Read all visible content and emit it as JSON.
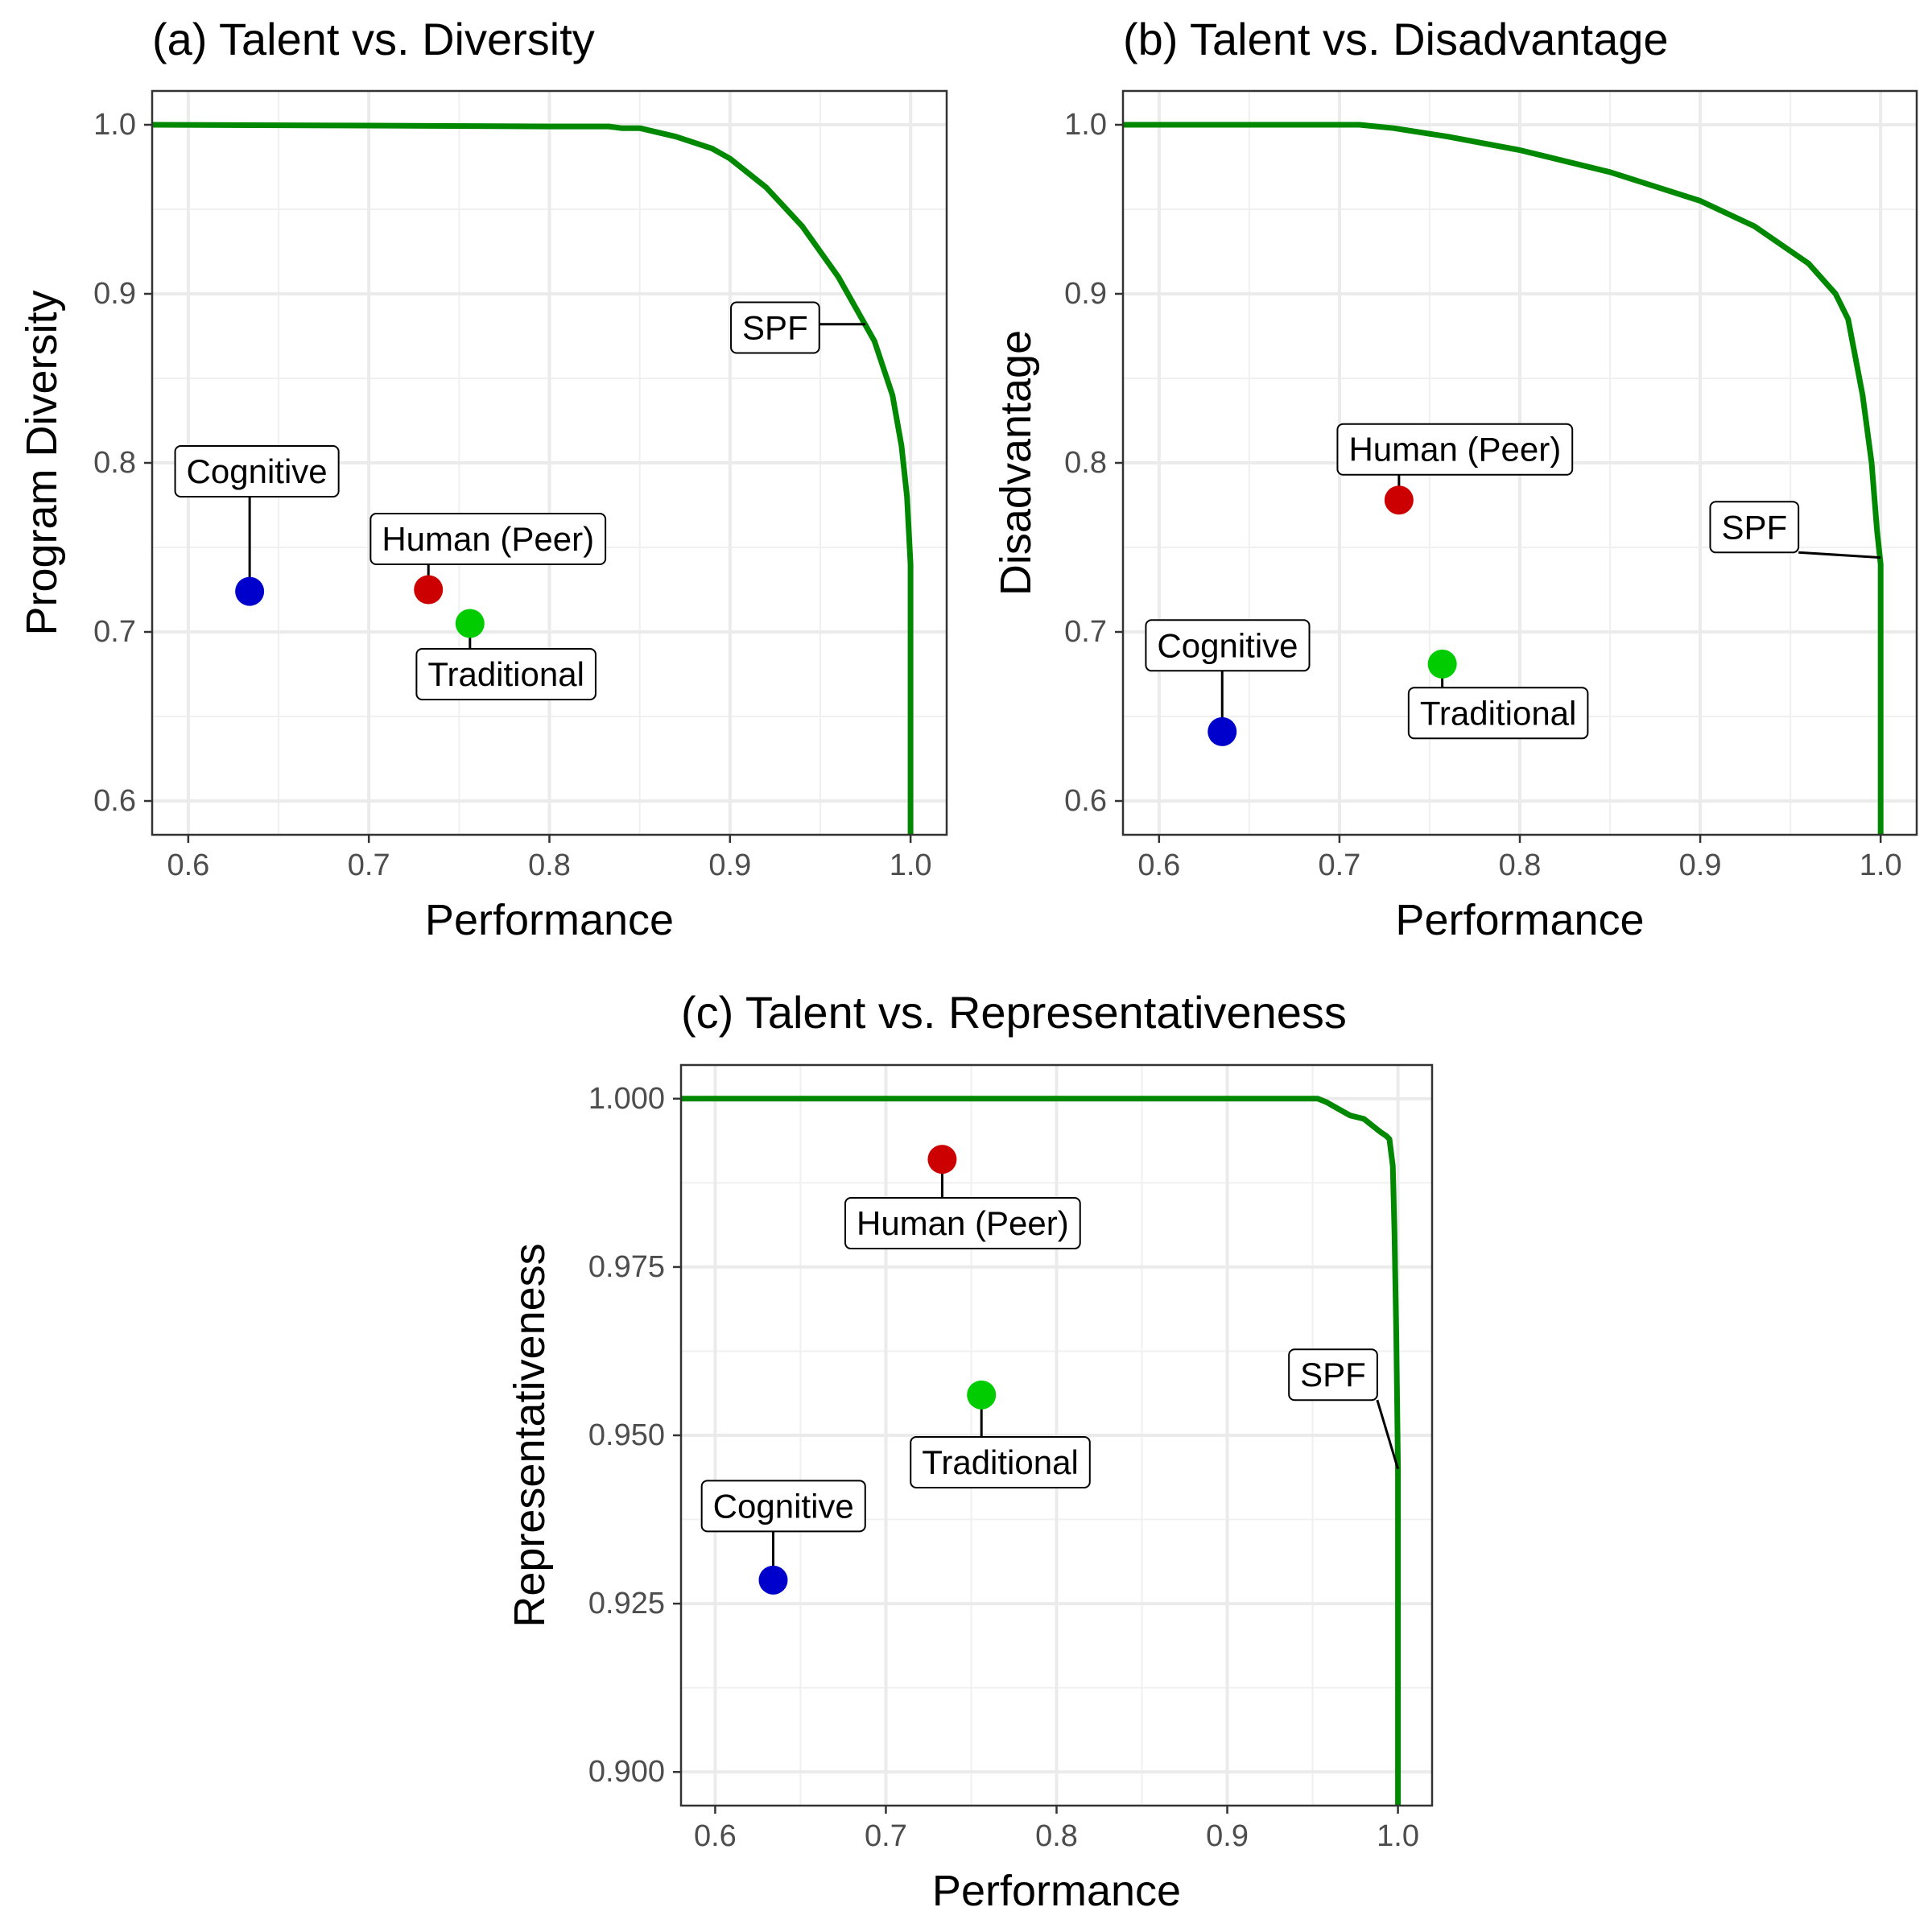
{
  "chart_data": [
    {
      "type": "scatter",
      "title": "(a) Talent vs. Diversity",
      "xlabel": "Performance",
      "ylabel": "Program Diversity",
      "xlim": [
        0.58,
        1.02
      ],
      "ylim": [
        0.58,
        1.02
      ],
      "xticks": [
        0.6,
        0.7,
        0.8,
        0.9,
        1.0
      ],
      "xtick_labels": [
        "0.6",
        "0.7",
        "0.8",
        "0.9",
        "1.0"
      ],
      "yticks": [
        0.6,
        0.7,
        0.8,
        0.9,
        1.0
      ],
      "ytick_labels": [
        "0.6",
        "0.7",
        "0.8",
        "0.9",
        "1.0"
      ],
      "grid": true,
      "frontier": {
        "label": "SPF",
        "color": "#008800",
        "x": [
          0.58,
          0.7,
          0.8,
          0.833,
          0.84,
          0.85,
          0.87,
          0.89,
          0.9,
          0.92,
          0.94,
          0.96,
          0.98,
          0.99,
          0.995,
          0.998,
          1.0,
          1.0
        ],
        "y": [
          1.0,
          0.9995,
          0.999,
          0.999,
          0.998,
          0.998,
          0.993,
          0.986,
          0.98,
          0.963,
          0.94,
          0.91,
          0.872,
          0.84,
          0.81,
          0.78,
          0.74,
          0.58
        ],
        "label_anchor": [
          0.975,
          0.882
        ],
        "label_pos": [
          0.925,
          0.88
        ]
      },
      "points": [
        {
          "label": "Cognitive",
          "x": 0.634,
          "y": 0.724,
          "color": "#0000cc",
          "label_pos": [
            0.638,
            0.795
          ]
        },
        {
          "label": "Human (Peer)",
          "x": 0.733,
          "y": 0.725,
          "color": "#cc0000",
          "label_pos": [
            0.766,
            0.755
          ]
        },
        {
          "label": "Traditional",
          "x": 0.756,
          "y": 0.705,
          "color": "#00cc00",
          "label_pos": [
            0.776,
            0.675
          ]
        }
      ]
    },
    {
      "type": "scatter",
      "title": "(b) Talent vs. Disadvantage",
      "xlabel": "Performance",
      "ylabel": "Disadvantage",
      "xlim": [
        0.58,
        1.02
      ],
      "ylim": [
        0.58,
        1.02
      ],
      "xticks": [
        0.6,
        0.7,
        0.8,
        0.9,
        1.0
      ],
      "xtick_labels": [
        "0.6",
        "0.7",
        "0.8",
        "0.9",
        "1.0"
      ],
      "yticks": [
        0.6,
        0.7,
        0.8,
        0.9,
        1.0
      ],
      "ytick_labels": [
        "0.6",
        "0.7",
        "0.8",
        "0.9",
        "1.0"
      ],
      "grid": true,
      "frontier": {
        "label": "SPF",
        "color": "#008800",
        "x": [
          0.58,
          0.711,
          0.73,
          0.76,
          0.8,
          0.85,
          0.9,
          0.93,
          0.96,
          0.975,
          0.982,
          0.99,
          0.995,
          0.998,
          1.0,
          1.0
        ],
        "y": [
          1.0,
          1.0,
          0.998,
          0.993,
          0.985,
          0.972,
          0.955,
          0.94,
          0.918,
          0.9,
          0.885,
          0.84,
          0.8,
          0.76,
          0.74,
          0.58
        ],
        "label_anchor": [
          1.0,
          0.744
        ],
        "label_pos": [
          0.93,
          0.762
        ]
      },
      "points": [
        {
          "label": "Cognitive",
          "x": 0.635,
          "y": 0.641,
          "color": "#0000cc",
          "label_pos": [
            0.638,
            0.692
          ]
        },
        {
          "label": "Human (Peer)",
          "x": 0.733,
          "y": 0.778,
          "color": "#cc0000",
          "label_pos": [
            0.764,
            0.808
          ]
        },
        {
          "label": "Traditional",
          "x": 0.757,
          "y": 0.681,
          "color": "#00cc00",
          "label_pos": [
            0.788,
            0.652
          ]
        }
      ]
    },
    {
      "type": "scatter",
      "title": "(c) Talent vs. Representativeness",
      "xlabel": "Performance",
      "ylabel": "Representativeness",
      "xlim": [
        0.58,
        1.02
      ],
      "ylim": [
        0.895,
        1.005
      ],
      "xticks": [
        0.6,
        0.7,
        0.8,
        0.9,
        1.0
      ],
      "xtick_labels": [
        "0.6",
        "0.7",
        "0.8",
        "0.9",
        "1.0"
      ],
      "yticks": [
        0.9,
        0.925,
        0.95,
        0.975,
        1.0
      ],
      "ytick_labels": [
        "0.900",
        "0.925",
        "0.950",
        "0.975",
        "1.000"
      ],
      "grid": true,
      "frontier": {
        "label": "SPF",
        "color": "#008800",
        "x": [
          0.58,
          0.7,
          0.8,
          0.9,
          0.953,
          0.958,
          0.965,
          0.972,
          0.98,
          0.985,
          0.99,
          0.993,
          0.995,
          0.997,
          0.998,
          0.999,
          1.0,
          1.0
        ],
        "y": [
          1.0,
          1.0,
          1.0,
          1.0,
          1.0,
          0.9995,
          0.9985,
          0.9975,
          0.997,
          0.996,
          0.995,
          0.9945,
          0.994,
          0.99,
          0.98,
          0.965,
          0.945,
          0.895
        ],
        "label_anchor": [
          1.0,
          0.945
        ],
        "label_pos": [
          0.962,
          0.959
        ]
      },
      "points": [
        {
          "label": "Cognitive",
          "x": 0.634,
          "y": 0.9285,
          "color": "#0000cc",
          "label_pos": [
            0.64,
            0.9395
          ]
        },
        {
          "label": "Human (Peer)",
          "x": 0.733,
          "y": 0.991,
          "color": "#cc0000",
          "label_pos": [
            0.745,
            0.9815
          ]
        },
        {
          "label": "Traditional",
          "x": 0.756,
          "y": 0.956,
          "color": "#00cc00",
          "label_pos": [
            0.767,
            0.946
          ]
        }
      ]
    }
  ]
}
